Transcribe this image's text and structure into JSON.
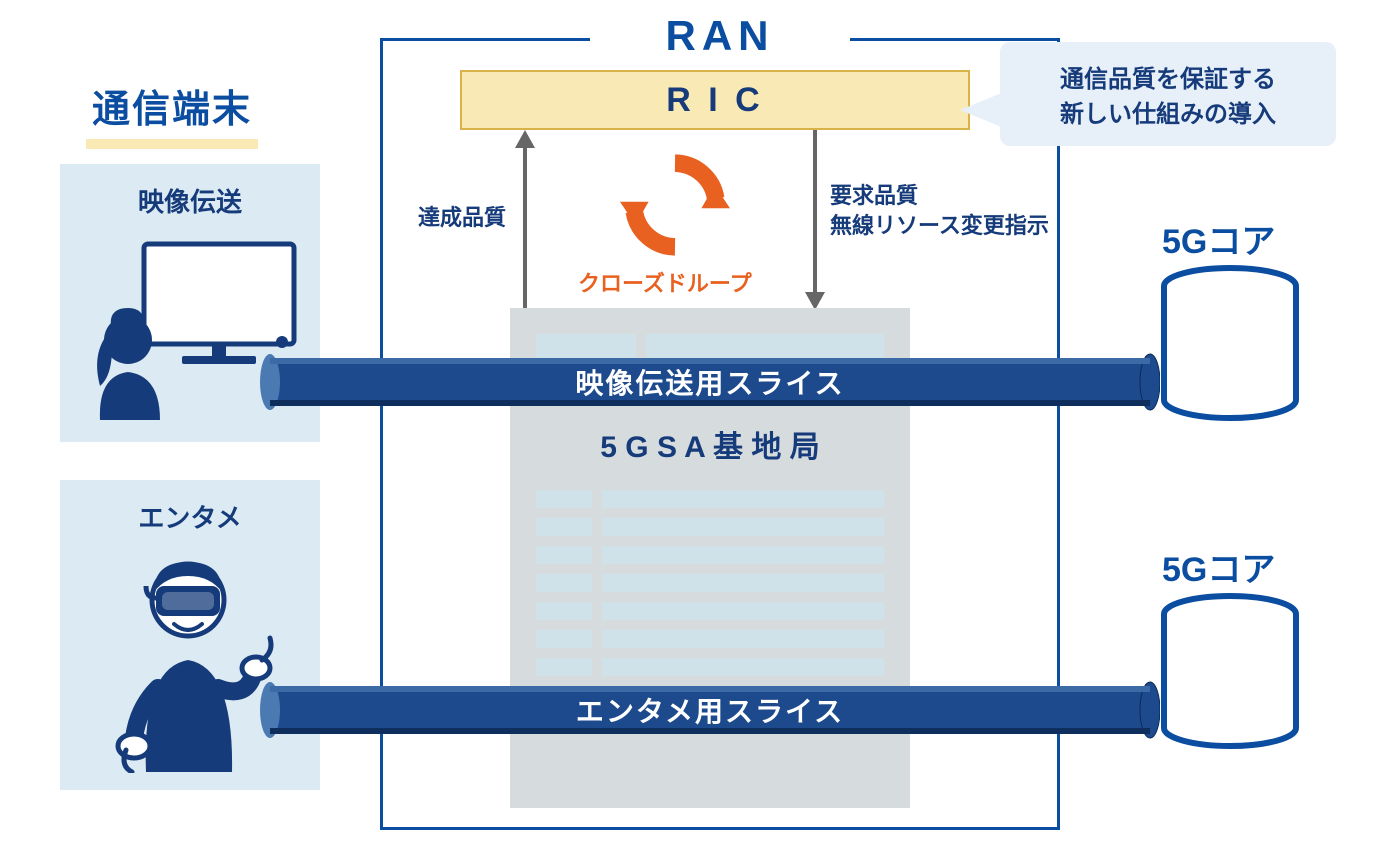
{
  "colors": {
    "primary_blue": "#0b4da0",
    "dark_blue": "#163b7a",
    "light_blue_bg": "#dcebf3",
    "very_light_blue": "#eef6fb",
    "ric_bg": "#f9e9b4",
    "ric_border": "#d9b34a",
    "callout_bg": "#e7eff9",
    "orange": "#e86120",
    "gray_bg": "#d6dbde",
    "gray_light": "#cfe2ea",
    "arrow_gray": "#666666",
    "text_dark": "#183863",
    "cylinder_border": "#0b4da0",
    "white": "#ffffff"
  },
  "left": {
    "section_title": "通信端末",
    "box1_label": "映像伝送",
    "box2_label": "エンタメ"
  },
  "ran": {
    "title": "RAN",
    "ric_label": "R I C",
    "arrow_left_label": "達成品質",
    "arrow_right_label1": "要求品質",
    "arrow_right_label2": "無線リソース変更指示",
    "loop_label": "クローズドループ",
    "base_station_label": "5 G S A 基 地 局",
    "callout_line1": "通信品質を保証する",
    "callout_line2": "新しい仕組みの導入"
  },
  "pipes": {
    "pipe1_label": "映像伝送用スライス",
    "pipe2_label": "エンタメ用スライス"
  },
  "right": {
    "core1_label": "5Gコア",
    "core2_label": "5Gコア"
  },
  "layout": {
    "terminal_title_underline_color": "#f9e9b4",
    "terminal_box_bg": "#dcebf3",
    "base_station_panel_bg": "#d6dbde",
    "base_station_rows": 8
  }
}
